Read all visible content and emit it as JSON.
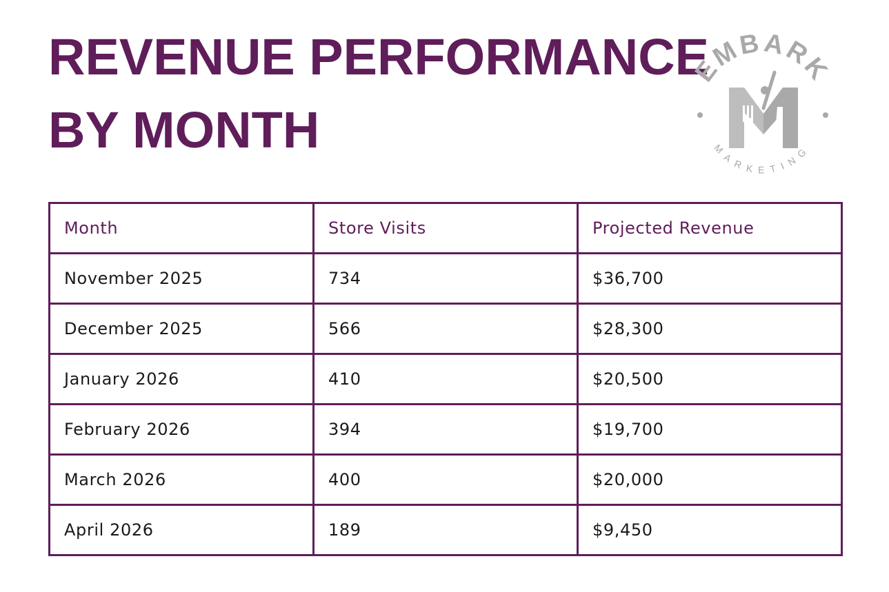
{
  "title": {
    "line1": "REVENUE PERFORMANCE",
    "line2": "BY MONTH"
  },
  "logo": {
    "brand_top": "EMBARK",
    "brand_bottom": "MARKETING",
    "monogram": "M",
    "color": "#a9a9a9"
  },
  "colors": {
    "accent": "#5f1d5a",
    "text": "#1a1a1a"
  },
  "table": {
    "headers": [
      "Month",
      "Store Visits",
      "Projected Revenue"
    ],
    "rows": [
      [
        "November 2025",
        "734",
        "$36,700"
      ],
      [
        "December 2025",
        "566",
        "$28,300"
      ],
      [
        "January 2026",
        "410",
        "$20,500"
      ],
      [
        "February 2026",
        "394",
        "$19,700"
      ],
      [
        "March 2026",
        "400",
        "$20,000"
      ],
      [
        "April 2026",
        "189",
        "$9,450"
      ]
    ]
  }
}
